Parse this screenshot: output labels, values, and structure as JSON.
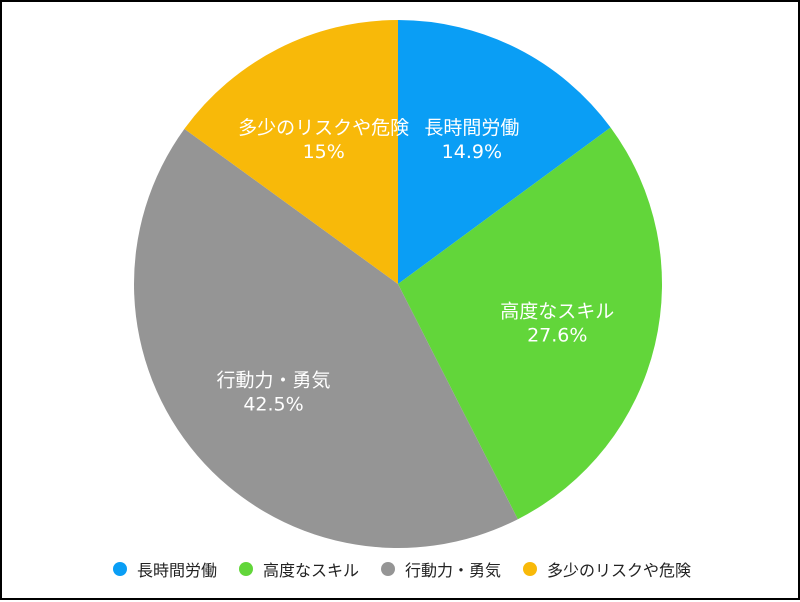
{
  "chart_data": {
    "type": "pie",
    "title": "",
    "slices": [
      {
        "label": "長時間労働",
        "value": 14.9,
        "value_label": "14.9%",
        "color": "#0a9ef5"
      },
      {
        "label": "高度なスキル",
        "value": 27.6,
        "value_label": "27.6%",
        "color": "#62d63a"
      },
      {
        "label": "行動力・勇気",
        "value": 42.5,
        "value_label": "42.5%",
        "color": "#959595"
      },
      {
        "label": "多少のリスクや危険",
        "value": 15,
        "value_label": "15%",
        "color": "#f8b909"
      }
    ],
    "legend_position": "bottom",
    "start_angle": "12 o'clock",
    "direction": "clockwise"
  }
}
